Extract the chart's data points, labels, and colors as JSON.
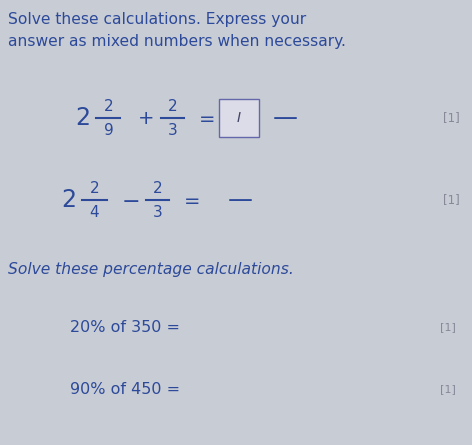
{
  "bg_color": "#c8ccd4",
  "title_line1": "Solve these calculations. Express your",
  "title_line2": "answer as mixed numbers when necessary.",
  "title_color": "#2d4a9a",
  "section2_title": "Solve these percentage calculations.",
  "section2_color": "#2d4a9a",
  "mark_color": "#888899",
  "eq1_mark": "[1]",
  "eq2_mark": "[1]",
  "pct1_mark": "[1]",
  "pct2_mark": "[1]",
  "pct1_text": "20% of 350 =",
  "pct2_text": "90% of 450 =",
  "font_color": "#2d4a9a",
  "fig_w": 4.72,
  "fig_h": 4.45,
  "dpi": 100
}
